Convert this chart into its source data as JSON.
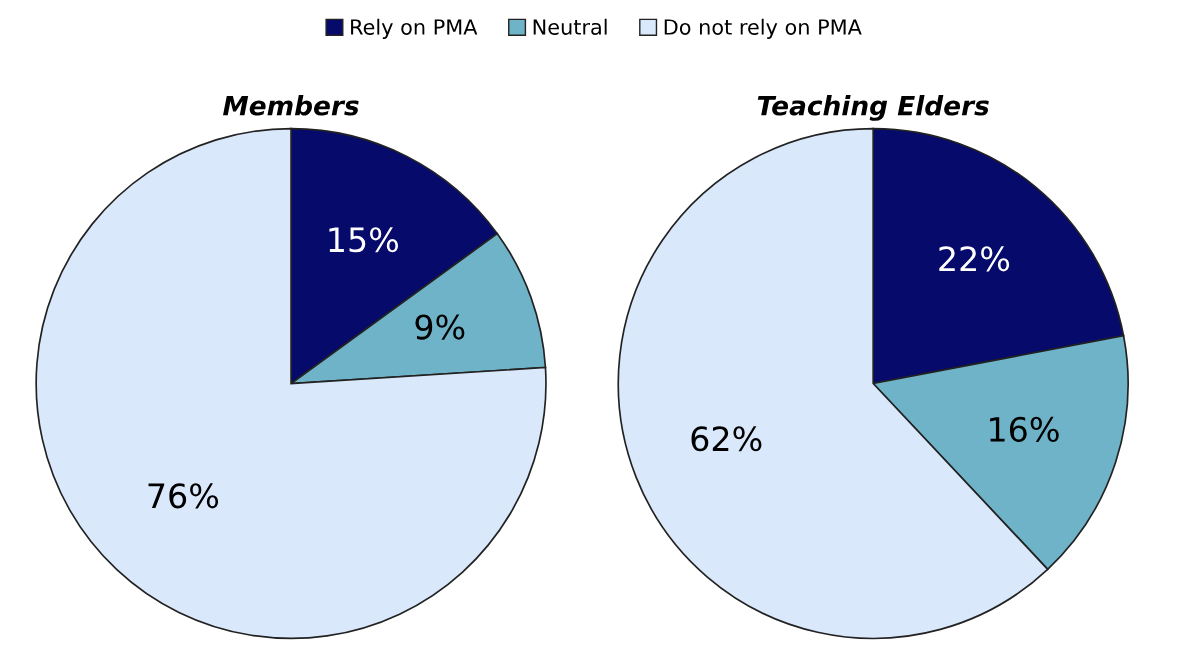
{
  "chart_data": [
    {
      "type": "pie",
      "title": "Members",
      "categories": [
        "Rely on PMA",
        "Neutral",
        "Do not rely on PMA"
      ],
      "values": [
        15,
        9,
        76
      ],
      "colors": [
        "#050a6b",
        "#6fb3c8",
        "#dae8fb"
      ],
      "value_labels": [
        "15%",
        "9%",
        "76%"
      ],
      "legend": "top"
    },
    {
      "type": "pie",
      "title": "Teaching Elders",
      "categories": [
        null,
        null,
        null
      ],
      "values": [
        22,
        16,
        62
      ],
      "colors": [
        "#050a6b",
        "#6fb3c8",
        "#dae8fb"
      ],
      "value_labels": [
        "22%",
        "16%",
        "62%"
      ]
    }
  ]
}
